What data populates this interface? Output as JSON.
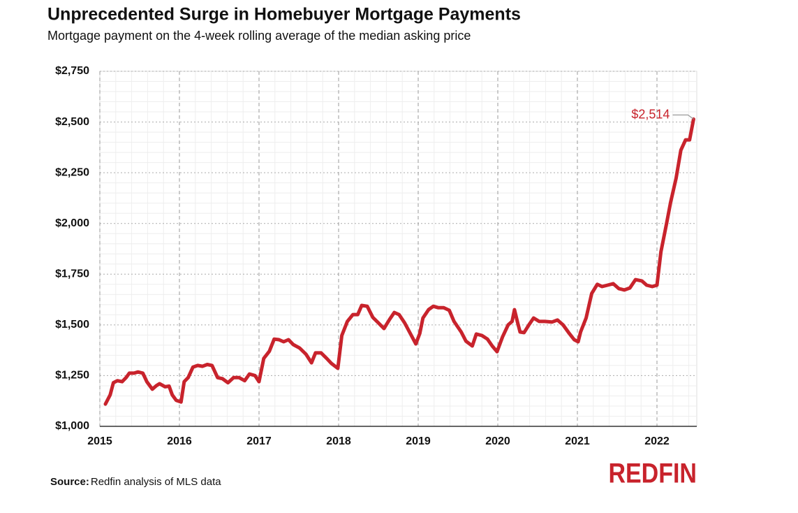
{
  "chart_data": {
    "type": "line",
    "title": "Unprecedented Surge in Homebuyer Mortgage Payments",
    "subtitle": "Mortgage payment on the 4-week rolling average of the median asking price",
    "x": [
      2015.07,
      2015.13,
      2015.17,
      2015.22,
      2015.28,
      2015.33,
      2015.37,
      2015.43,
      2015.48,
      2015.54,
      2015.59,
      2015.66,
      2015.71,
      2015.75,
      2015.82,
      2015.87,
      2015.91,
      2015.96,
      2016.02,
      2016.06,
      2016.11,
      2016.17,
      2016.23,
      2016.29,
      2016.35,
      2016.41,
      2016.48,
      2016.54,
      2016.61,
      2016.68,
      2016.75,
      2016.82,
      2016.88,
      2016.95,
      2017.0,
      2017.06,
      2017.13,
      2017.19,
      2017.25,
      2017.31,
      2017.37,
      2017.43,
      2017.51,
      2017.59,
      2017.66,
      2017.71,
      2017.78,
      2017.85,
      2017.91,
      2017.99,
      2018.04,
      2018.11,
      2018.18,
      2018.24,
      2018.29,
      2018.36,
      2018.43,
      2018.5,
      2018.57,
      2018.64,
      2018.7,
      2018.76,
      2018.83,
      2018.9,
      2018.97,
      2019.02,
      2019.06,
      2019.13,
      2019.19,
      2019.25,
      2019.32,
      2019.39,
      2019.45,
      2019.54,
      2019.6,
      2019.68,
      2019.73,
      2019.8,
      2019.87,
      2019.93,
      2019.99,
      2020.06,
      2020.13,
      2020.18,
      2020.21,
      2020.25,
      2020.28,
      2020.33,
      2020.39,
      2020.45,
      2020.52,
      2020.59,
      2020.68,
      2020.75,
      2020.82,
      2020.89,
      2020.96,
      2021.01,
      2021.04,
      2021.11,
      2021.18,
      2021.25,
      2021.31,
      2021.38,
      2021.45,
      2021.52,
      2021.59,
      2021.66,
      2021.73,
      2021.81,
      2021.87,
      2021.94,
      2022.0,
      2022.05,
      2022.12,
      2022.17,
      2022.24,
      2022.3,
      2022.36,
      2022.41,
      2022.46
    ],
    "values": [
      1110,
      1155,
      1215,
      1225,
      1220,
      1240,
      1262,
      1262,
      1268,
      1262,
      1220,
      1183,
      1200,
      1210,
      1195,
      1198,
      1155,
      1128,
      1120,
      1220,
      1240,
      1292,
      1300,
      1296,
      1305,
      1300,
      1240,
      1235,
      1215,
      1240,
      1240,
      1225,
      1258,
      1250,
      1220,
      1335,
      1370,
      1430,
      1427,
      1417,
      1427,
      1403,
      1386,
      1355,
      1313,
      1362,
      1362,
      1335,
      1310,
      1286,
      1448,
      1517,
      1551,
      1551,
      1596,
      1592,
      1537,
      1510,
      1482,
      1527,
      1561,
      1551,
      1510,
      1458,
      1406,
      1458,
      1534,
      1575,
      1592,
      1585,
      1585,
      1572,
      1517,
      1465,
      1420,
      1396,
      1455,
      1448,
      1430,
      1396,
      1368,
      1441,
      1500,
      1517,
      1575,
      1510,
      1465,
      1462,
      1500,
      1534,
      1517,
      1517,
      1514,
      1524,
      1500,
      1462,
      1427,
      1417,
      1465,
      1534,
      1655,
      1700,
      1689,
      1696,
      1703,
      1679,
      1672,
      1682,
      1723,
      1717,
      1696,
      1689,
      1696,
      1861,
      1999,
      2102,
      2223,
      2361,
      2412,
      2412,
      2514
    ],
    "color": "#c8232c",
    "xlim": [
      2015,
      2022.5
    ],
    "xticks": [
      2015,
      2016,
      2017,
      2018,
      2019,
      2020,
      2021,
      2022
    ],
    "ylim": [
      1000,
      2750
    ],
    "yticks": [
      {
        "value": 1000,
        "label": "$1,000"
      },
      {
        "value": 1250,
        "label": "$1,250"
      },
      {
        "value": 1500,
        "label": "$1,500"
      },
      {
        "value": 1750,
        "label": "$1,750"
      },
      {
        "value": 2000,
        "label": "$2,000"
      },
      {
        "value": 2250,
        "label": "$2,250"
      },
      {
        "value": 2500,
        "label": "$2,500"
      },
      {
        "value": 2750,
        "label": "$2,750"
      }
    ],
    "grid": true,
    "annotation": {
      "label": "$2,514",
      "x": 2022.46,
      "y": 2514
    },
    "source_label": "Source:",
    "source": "Redfin analysis of MLS data",
    "logo": "REDFIN"
  }
}
